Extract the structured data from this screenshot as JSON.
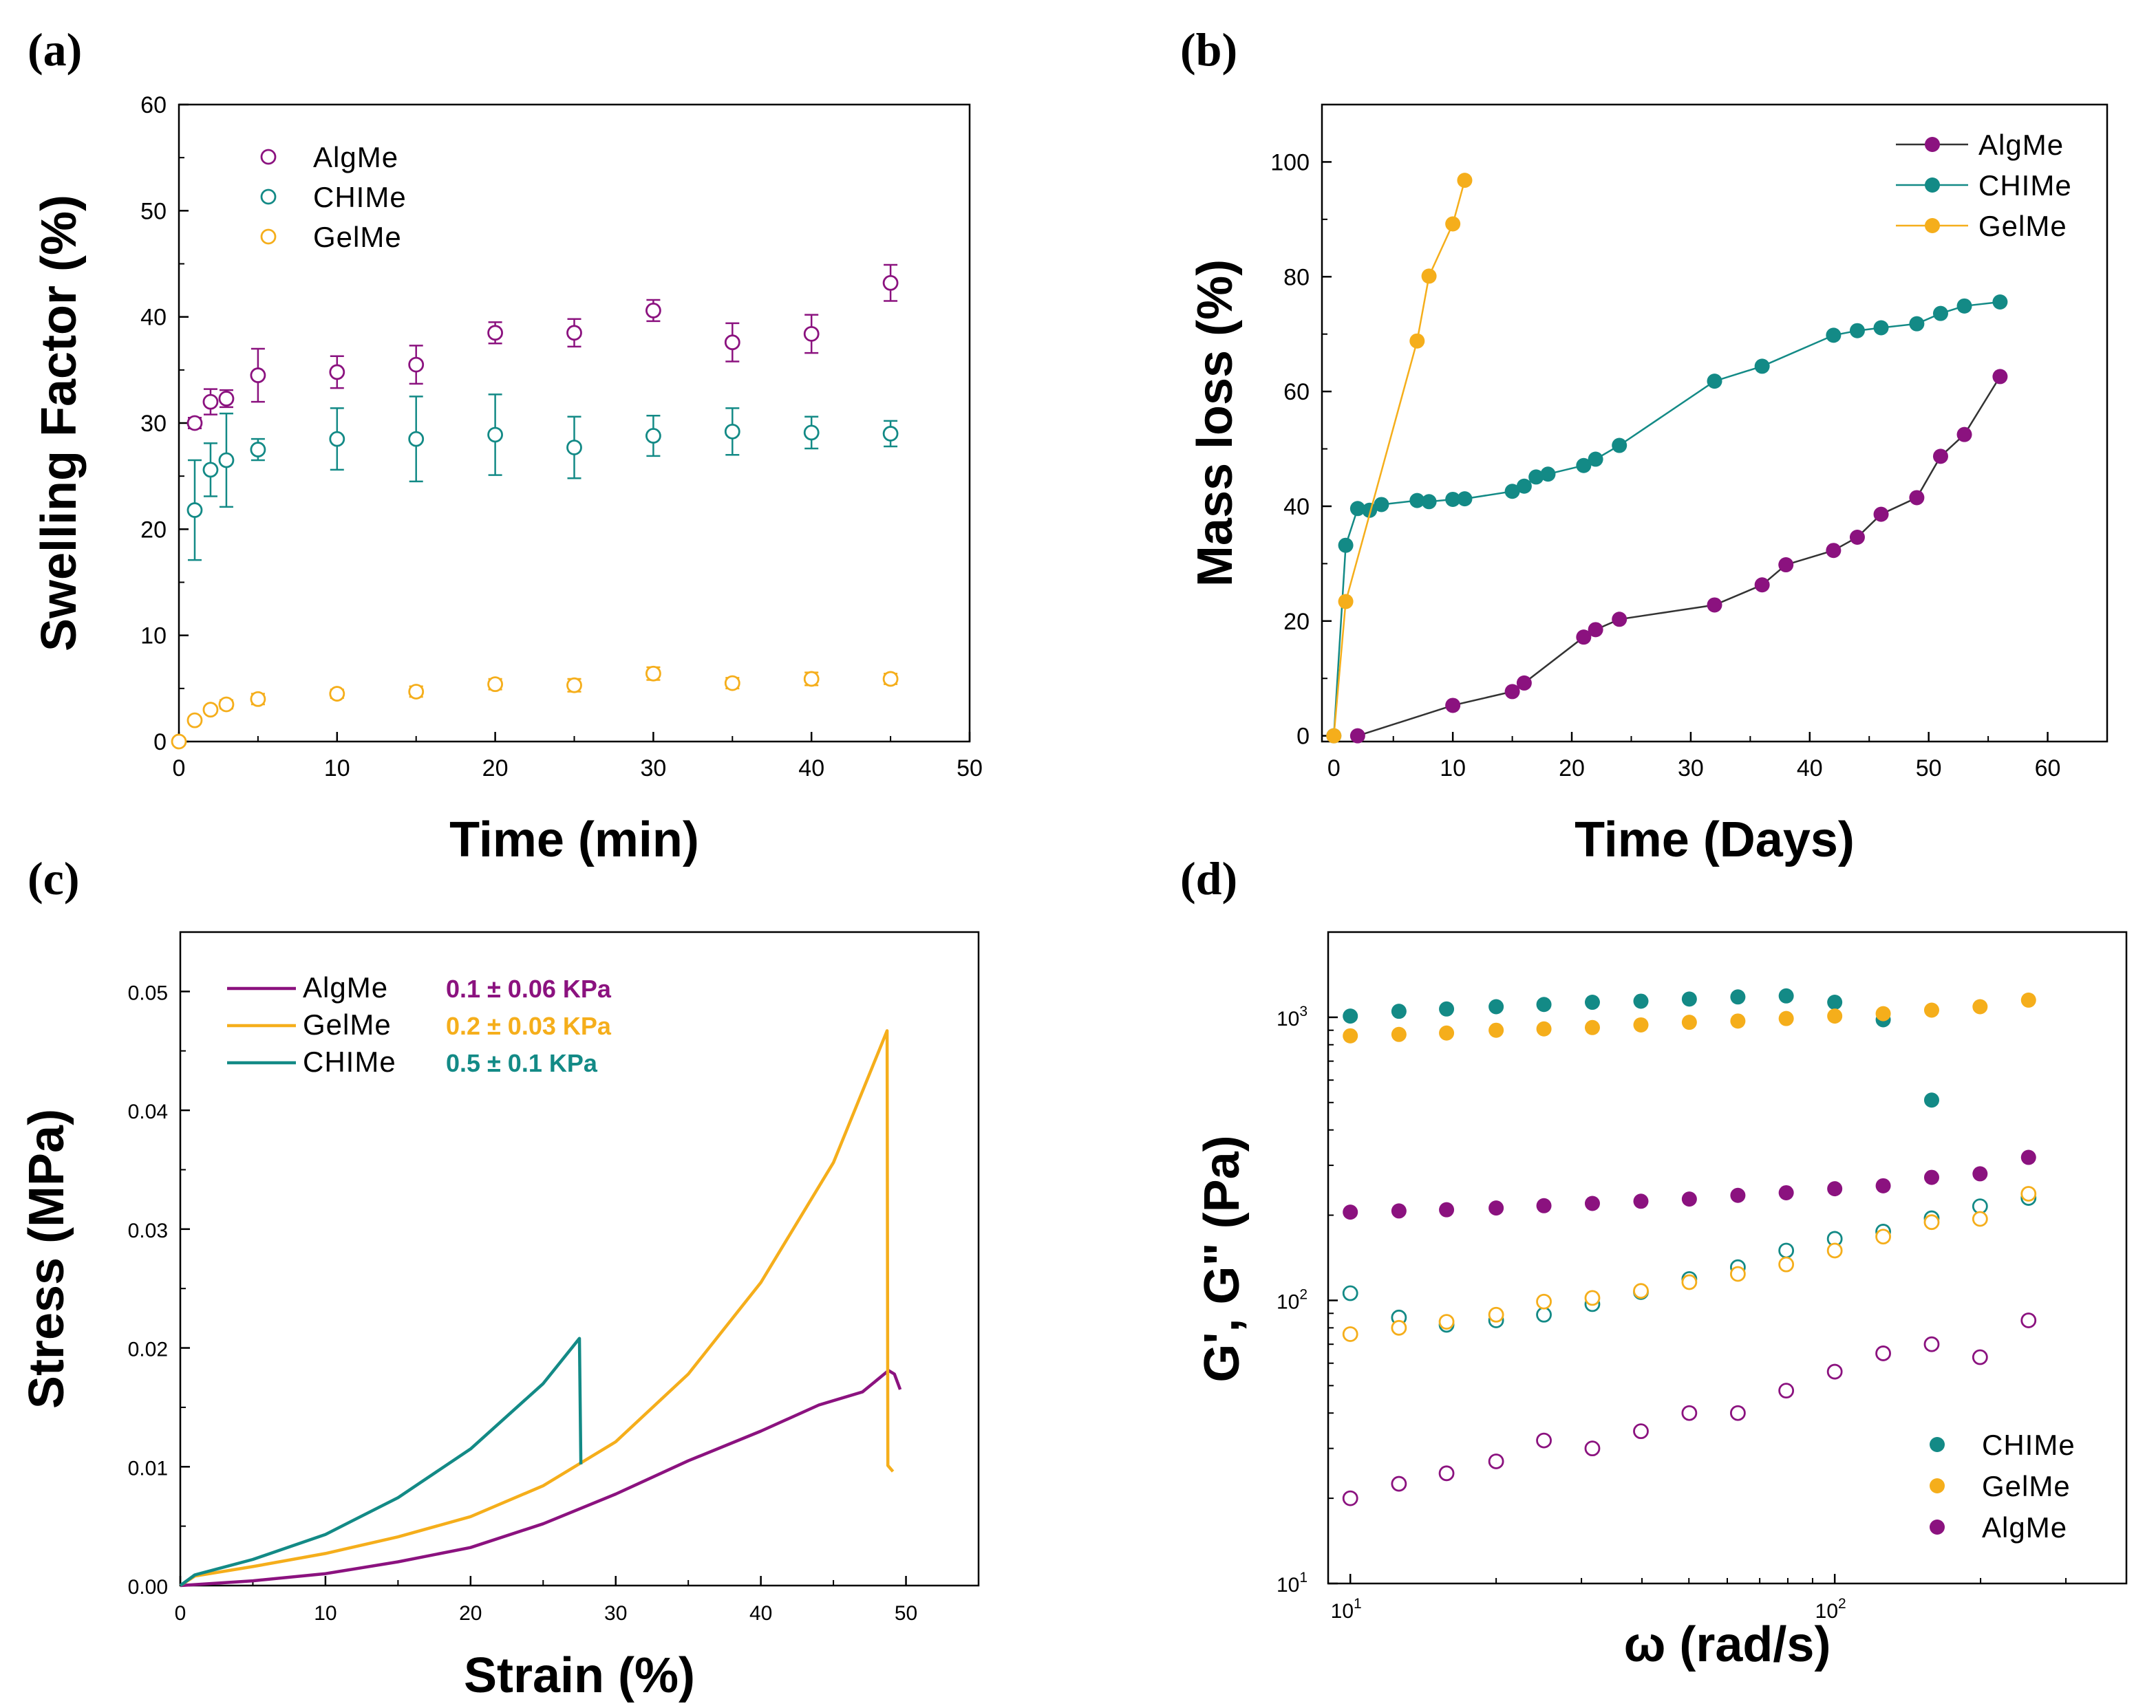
{
  "colors": {
    "algme": "#8b127f",
    "chime": "#138a86",
    "gelme": "#f5ae1b"
  },
  "chart_data": [
    {
      "id": "a",
      "panel_label": "(a)",
      "type": "scatter",
      "xlabel": "Time (min)",
      "ylabel": "Swelling Factor (%)",
      "xlim": [
        0,
        50
      ],
      "ylim": [
        0,
        60
      ],
      "xticks": [
        "0",
        "10",
        "20",
        "30",
        "40",
        "50"
      ],
      "yticks": [
        "0",
        "10",
        "20",
        "30",
        "40",
        "50",
        "60"
      ],
      "grid": false,
      "legend_position": "top-left",
      "series": [
        {
          "name": "AlgMe",
          "color_key": "algme",
          "marker": "open-circle",
          "x": [
            1,
            2,
            3,
            5,
            10,
            15,
            20,
            25,
            30,
            35,
            40,
            45
          ],
          "y": [
            30,
            32,
            32.3,
            34.5,
            34.8,
            35.5,
            38.5,
            38.5,
            40.6,
            37.6,
            38.4,
            43.2
          ],
          "err": [
            0.5,
            1.2,
            0.8,
            2.5,
            1.5,
            1.8,
            1.0,
            1.3,
            1.0,
            1.8,
            1.8,
            1.7
          ]
        },
        {
          "name": "CHIMe",
          "color_key": "chime",
          "marker": "open-circle",
          "x": [
            1,
            2,
            3,
            5,
            10,
            15,
            20,
            25,
            30,
            35,
            40,
            45
          ],
          "y": [
            21.8,
            25.6,
            26.5,
            27.5,
            28.5,
            28.5,
            28.9,
            27.7,
            28.8,
            29.2,
            29.1,
            29
          ],
          "err": [
            4.7,
            2.5,
            4.4,
            1.0,
            2.9,
            4.0,
            3.8,
            2.9,
            1.9,
            2.2,
            1.5,
            1.2
          ]
        },
        {
          "name": "GelMe",
          "color_key": "gelme",
          "marker": "open-circle",
          "x": [
            0,
            1,
            2,
            3,
            5,
            10,
            15,
            20,
            25,
            30,
            35,
            40,
            45
          ],
          "y": [
            0,
            2,
            3,
            3.5,
            4,
            4.5,
            4.7,
            5.4,
            5.3,
            6.4,
            5.5,
            5.9,
            5.9
          ],
          "err": [
            0,
            0.3,
            0.3,
            0.4,
            0.5,
            0.4,
            0.5,
            0.5,
            0.6,
            0.6,
            0.5,
            0.6,
            0.5
          ]
        }
      ]
    },
    {
      "id": "b",
      "panel_label": "(b)",
      "type": "line",
      "xlabel": "Time (Days)",
      "ylabel": "Mass loss (%)",
      "xlim": [
        -1,
        65
      ],
      "ylim": [
        -1,
        110
      ],
      "xticks": [
        "0",
        "10",
        "20",
        "30",
        "40",
        "50",
        "60"
      ],
      "yticks": [
        "0",
        "20",
        "40",
        "60",
        "80",
        "100"
      ],
      "grid": false,
      "legend_position": "top-right",
      "series": [
        {
          "name": "AlgMe",
          "color_key": "algme",
          "marker": "filled-circle",
          "x": [
            2,
            10,
            15,
            16,
            21,
            22,
            24,
            32,
            36,
            38,
            42,
            44,
            46,
            49,
            51,
            53,
            56
          ],
          "y": [
            0,
            5.3,
            7.7,
            9.2,
            17.2,
            18.5,
            20.3,
            22.8,
            26.3,
            29.8,
            32.3,
            34.6,
            38.6,
            41.5,
            48.7,
            52.5,
            62.6
          ]
        },
        {
          "name": "CHIMe",
          "color_key": "chime",
          "marker": "filled-circle",
          "x": [
            0,
            1,
            2,
            3,
            4,
            7,
            8,
            10,
            11,
            15,
            16,
            17,
            18,
            21,
            22,
            24,
            32,
            36,
            42,
            44,
            46,
            49,
            51,
            53,
            56
          ],
          "y": [
            0,
            33.2,
            39.6,
            39.3,
            40.3,
            41,
            40.8,
            41.2,
            41.3,
            42.6,
            43.5,
            45.1,
            45.6,
            47.1,
            48.2,
            50.6,
            61.8,
            64.4,
            69.8,
            70.6,
            71.1,
            71.8,
            73.6,
            74.9,
            75.6
          ]
        },
        {
          "name": "GelMe",
          "color_key": "gelme",
          "marker": "filled-circle",
          "x": [
            0,
            1,
            7,
            8,
            10,
            11
          ],
          "y": [
            0,
            23.4,
            68.8,
            80.1,
            89.2,
            96.8
          ]
        }
      ]
    },
    {
      "id": "c",
      "panel_label": "(c)",
      "type": "line",
      "xlabel": "Strain (%)",
      "ylabel": "Stress (MPa)",
      "xlim": [
        0,
        55
      ],
      "ylim": [
        0,
        0.055
      ],
      "xticks": [
        "0",
        "10",
        "20",
        "30",
        "40",
        "50"
      ],
      "yticks": [
        "0.00",
        "0.01",
        "0.02",
        "0.03",
        "0.04",
        "0.05"
      ],
      "grid": false,
      "legend_position": "top-left",
      "annotations": [
        {
          "series": "AlgMe",
          "text": "0.1 ± 0.06 KPa"
        },
        {
          "series": "GelMe",
          "text": "0.2 ± 0.03 KPa"
        },
        {
          "series": "CHIMe",
          "text": "0.5 ± 0.1 KPa"
        }
      ],
      "series": [
        {
          "name": "AlgMe",
          "color_key": "algme",
          "x": [
            0,
            5,
            10,
            15,
            20,
            25,
            30,
            35,
            40,
            44,
            47,
            48.8,
            49.2,
            49.6
          ],
          "y": [
            0,
            0.0004,
            0.001,
            0.002,
            0.0032,
            0.0052,
            0.0077,
            0.0105,
            0.013,
            0.0152,
            0.0163,
            0.0181,
            0.0178,
            0.0165
          ]
        },
        {
          "name": "GelMe",
          "color_key": "gelme",
          "x": [
            0,
            1,
            5,
            10,
            15,
            20,
            25,
            30,
            35,
            40,
            45,
            48.7,
            48.75,
            49.1
          ],
          "y": [
            0,
            0.0008,
            0.0016,
            0.0027,
            0.0041,
            0.0058,
            0.0084,
            0.0121,
            0.0178,
            0.0255,
            0.0356,
            0.0467,
            0.0101,
            0.0096
          ]
        },
        {
          "name": "CHIMe",
          "color_key": "chime",
          "x": [
            0,
            1,
            5,
            10,
            15,
            20,
            25,
            27.5,
            27.6
          ],
          "y": [
            0,
            0.0009,
            0.0022,
            0.0043,
            0.0074,
            0.0115,
            0.017,
            0.0208,
            0.0102
          ]
        }
      ]
    },
    {
      "id": "d",
      "panel_label": "(d)",
      "type": "scatter",
      "xlabel": "ω (rad/s)",
      "ylabel": "G', G\" (Pa)",
      "xscale": "log",
      "yscale": "log",
      "xlim": [
        9,
        400
      ],
      "ylim": [
        10,
        2000
      ],
      "xticks": [
        {
          "base": "10",
          "exp": "1"
        },
        {
          "base": "10",
          "exp": "2"
        }
      ],
      "yticks": [
        {
          "base": "10",
          "exp": "1"
        },
        {
          "base": "10",
          "exp": "2"
        },
        {
          "base": "10",
          "exp": "3"
        }
      ],
      "grid": false,
      "legend_position": "bottom-right",
      "x": [
        10,
        12.6,
        15.8,
        20,
        25.1,
        31.6,
        39.8,
        50.1,
        63.1,
        79.4,
        100,
        125.9,
        158.5,
        199.5,
        251.2
      ],
      "series": [
        {
          "name": "CHIMe",
          "color_key": "chime",
          "marker": "filled-circle",
          "legend": true,
          "y": [
            1010,
            1050,
            1070,
            1090,
            1110,
            1130,
            1140,
            1160,
            1180,
            1190,
            1130,
            980,
            510,
            null,
            null
          ]
        },
        {
          "name": "GelMe",
          "color_key": "gelme",
          "marker": "filled-circle",
          "legend": true,
          "y": [
            860,
            870,
            880,
            900,
            910,
            920,
            940,
            960,
            970,
            990,
            1010,
            1030,
            1060,
            1090,
            1150
          ]
        },
        {
          "name": "AlgMe",
          "color_key": "algme",
          "marker": "filled-circle",
          "legend": true,
          "y": [
            205,
            207,
            209,
            212,
            216,
            220,
            224,
            228,
            235,
            240,
            248,
            254,
            272,
            280,
            320
          ]
        },
        {
          "name": "CHIMe G\"",
          "color_key": "chime",
          "marker": "open-circle",
          "legend": false,
          "y": [
            106,
            87,
            82,
            85,
            89,
            97,
            107,
            119,
            131,
            150,
            165,
            175,
            195,
            215,
            230
          ]
        },
        {
          "name": "GelMe G\"",
          "color_key": "gelme",
          "marker": "open-circle",
          "legend": false,
          "y": [
            76,
            80,
            84,
            89,
            99,
            102,
            108,
            116,
            124,
            134,
            150,
            168,
            189,
            194,
            238
          ]
        },
        {
          "name": "AlgMe G\"",
          "color_key": "algme",
          "marker": "open-circle",
          "legend": false,
          "y": [
            20,
            22.5,
            24.5,
            27,
            32,
            30,
            34.5,
            40,
            40,
            48,
            56,
            65,
            70,
            63,
            85
          ]
        }
      ]
    }
  ]
}
